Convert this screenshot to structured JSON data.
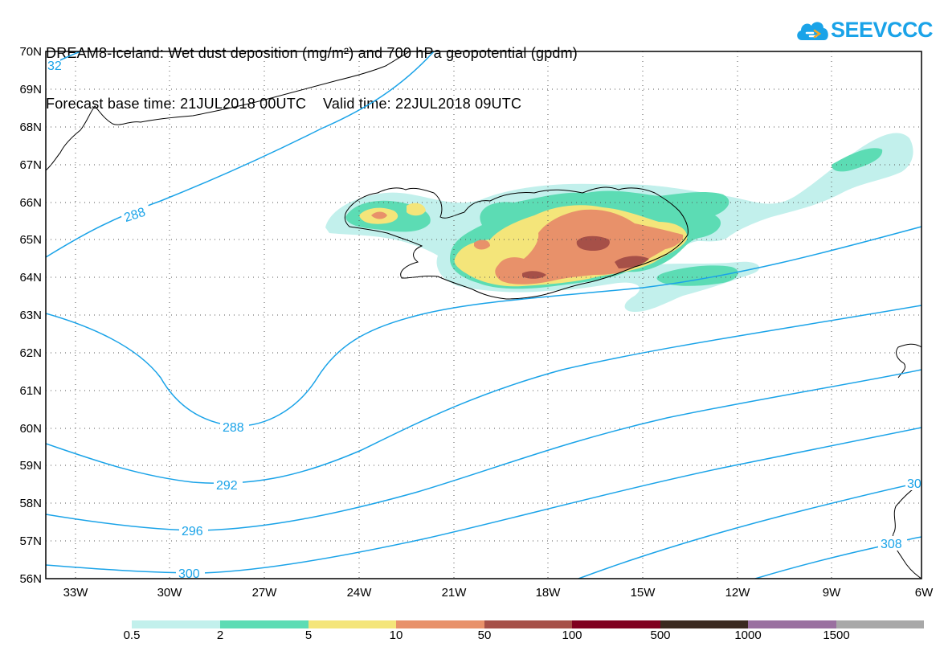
{
  "title": {
    "line1": "DREAM8-Iceland: Wet dust deposition (mg/m²) and 700 hPa geopotential (gpdm)",
    "line2": "Forecast base time: 21JUL2018 00UTC    Valid time: 22JUL2018 09UTC"
  },
  "logo": {
    "text": "SEEVCCC",
    "color": "#1aa3e8"
  },
  "map": {
    "lat_labels": [
      "70N",
      "69N",
      "68N",
      "67N",
      "66N",
      "65N",
      "64N",
      "63N",
      "62N",
      "61N",
      "60N",
      "59N",
      "58N",
      "57N",
      "56N"
    ],
    "lon_labels": [
      "33W",
      "30W",
      "27W",
      "24W",
      "21W",
      "18W",
      "15W",
      "12W",
      "9W",
      "6W"
    ],
    "lat_range": [
      56,
      70
    ],
    "lon_range": [
      -34.3,
      -6
    ],
    "grid": true,
    "contour_color": "#1aa3e8",
    "contour_labels": [
      "32",
      "288",
      "288",
      "292",
      "296",
      "300",
      "30",
      "308"
    ]
  },
  "colorbar": {
    "labels": [
      "0.5",
      "2",
      "5",
      "10",
      "50",
      "100",
      "500",
      "1000",
      "1500"
    ],
    "colors": [
      "#c2f0ec",
      "#5cdcb4",
      "#f4e57a",
      "#e8916a",
      "#a65048",
      "#800020",
      "#3a2a20",
      "#9a70a0",
      "#a8a8a8"
    ]
  }
}
